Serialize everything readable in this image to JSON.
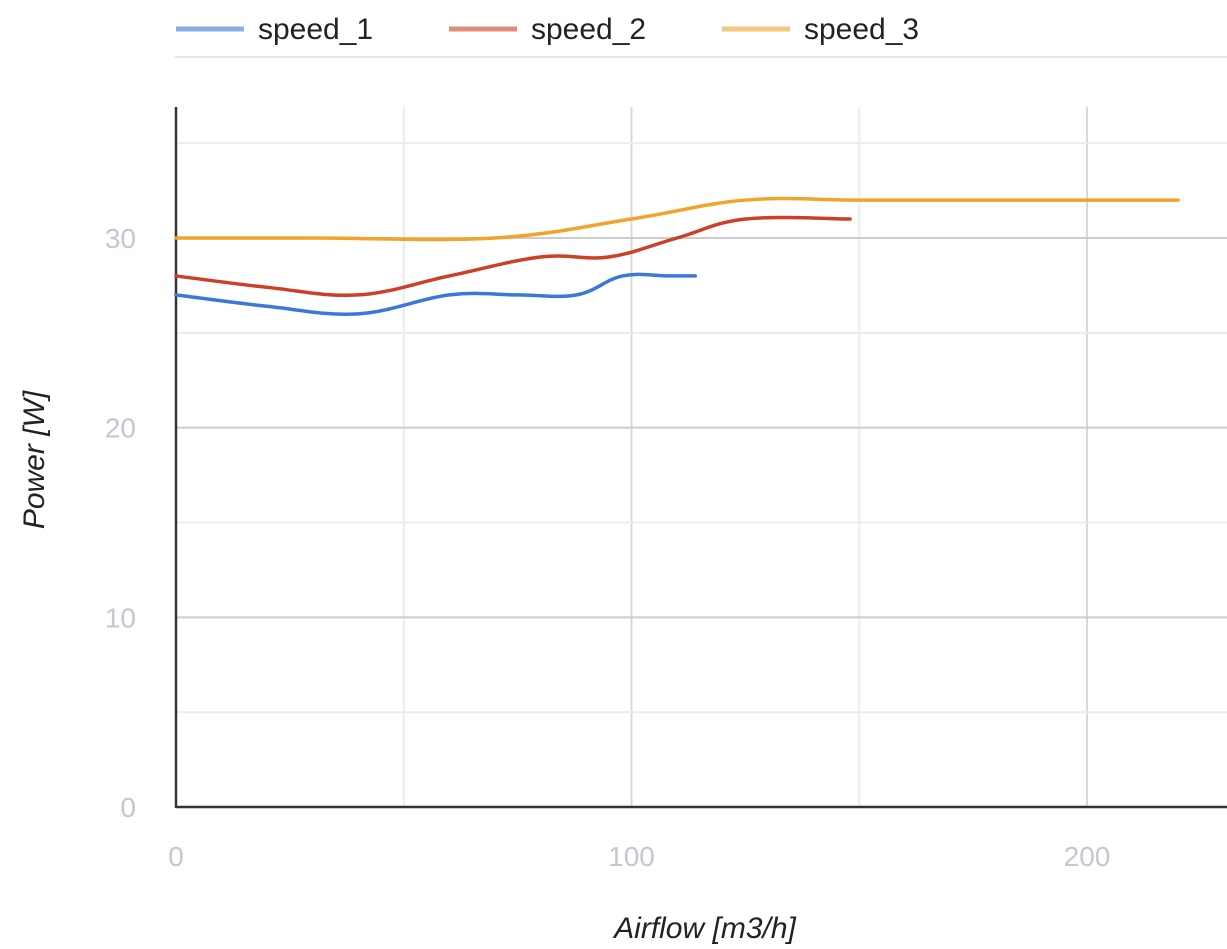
{
  "chart_data": {
    "type": "line",
    "title": "",
    "xlabel": "Airflow [m3/h]",
    "ylabel": "Power [W]",
    "xlim": [
      0,
      230
    ],
    "ylim": [
      0,
      35
    ],
    "x_ticks": [
      0,
      100,
      200
    ],
    "x_tick_labels": [
      "0",
      "100",
      "200"
    ],
    "x_minor_grid": [
      50,
      150
    ],
    "y_ticks": [
      0,
      10,
      20,
      30
    ],
    "y_tick_labels": [
      "0",
      "10",
      "20",
      "30"
    ],
    "y_minor_grid": [
      5,
      15,
      25,
      35
    ],
    "grid": true,
    "legend_position": "top-left",
    "series": [
      {
        "name": "speed_1",
        "color": "#3c78d8",
        "x": [
          0,
          20,
          40,
          60,
          75,
          88,
          98,
          108,
          114
        ],
        "y": [
          27,
          26.4,
          26,
          27,
          27,
          27,
          28,
          28,
          28
        ]
      },
      {
        "name": "speed_2",
        "color": "#cc4125",
        "x": [
          0,
          20,
          40,
          60,
          80,
          95,
          110,
          125,
          148
        ],
        "y": [
          28,
          27.4,
          27,
          28,
          29,
          29,
          30,
          31,
          31
        ]
      },
      {
        "name": "speed_3",
        "color": "#f1a32a",
        "x": [
          0,
          30,
          70,
          100,
          125,
          150,
          180,
          220
        ],
        "y": [
          30,
          30,
          30,
          31,
          32,
          32,
          32,
          32
        ]
      }
    ]
  }
}
